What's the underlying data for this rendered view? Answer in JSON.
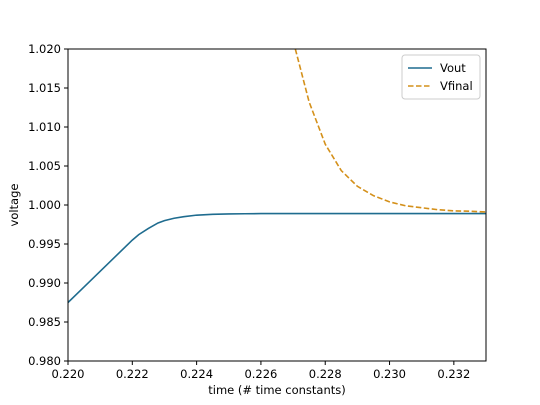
{
  "chart_data": {
    "type": "line",
    "title": "",
    "xlabel": "time (# time constants)",
    "ylabel": "voltage",
    "xlim": [
      0.22,
      0.233
    ],
    "ylim": [
      0.98,
      1.02
    ],
    "x_ticks": [
      "0.220",
      "0.222",
      "0.224",
      "0.226",
      "0.228",
      "0.230",
      "0.232"
    ],
    "y_ticks": [
      "0.980",
      "0.985",
      "0.990",
      "0.995",
      "1.000",
      "1.005",
      "1.010",
      "1.015",
      "1.020"
    ],
    "grid": false,
    "legend_position": "top-right",
    "series": [
      {
        "name": "Vout",
        "color": "#1f6c8f",
        "style": "solid",
        "x": [
          0.22,
          0.2205,
          0.221,
          0.2215,
          0.222,
          0.2222,
          0.2225,
          0.2228,
          0.223,
          0.2233,
          0.2236,
          0.224,
          0.2245,
          0.225,
          0.2255,
          0.226,
          0.227,
          0.228,
          0.229,
          0.23,
          0.231,
          0.232,
          0.233
        ],
        "values": [
          0.9875,
          0.9895,
          0.9915,
          0.9935,
          0.9955,
          0.9962,
          0.997,
          0.9977,
          0.998,
          0.9983,
          0.9985,
          0.9987,
          0.9988,
          0.99885,
          0.99888,
          0.9989,
          0.9989,
          0.9989,
          0.9989,
          0.9989,
          0.9989,
          0.9989,
          0.9989
        ]
      },
      {
        "name": "Vfinal",
        "color": "#d4901a",
        "style": "dashed",
        "x": [
          0.22707,
          0.2275,
          0.228,
          0.2285,
          0.229,
          0.2295,
          0.23,
          0.2305,
          0.231,
          0.2315,
          0.232,
          0.2325,
          0.233
        ],
        "values": [
          1.02,
          1.0132,
          1.0078,
          1.0044,
          1.0024,
          1.0012,
          1.0004,
          0.9999,
          0.99965,
          0.9994,
          0.99925,
          0.9992,
          0.9991
        ]
      }
    ]
  }
}
